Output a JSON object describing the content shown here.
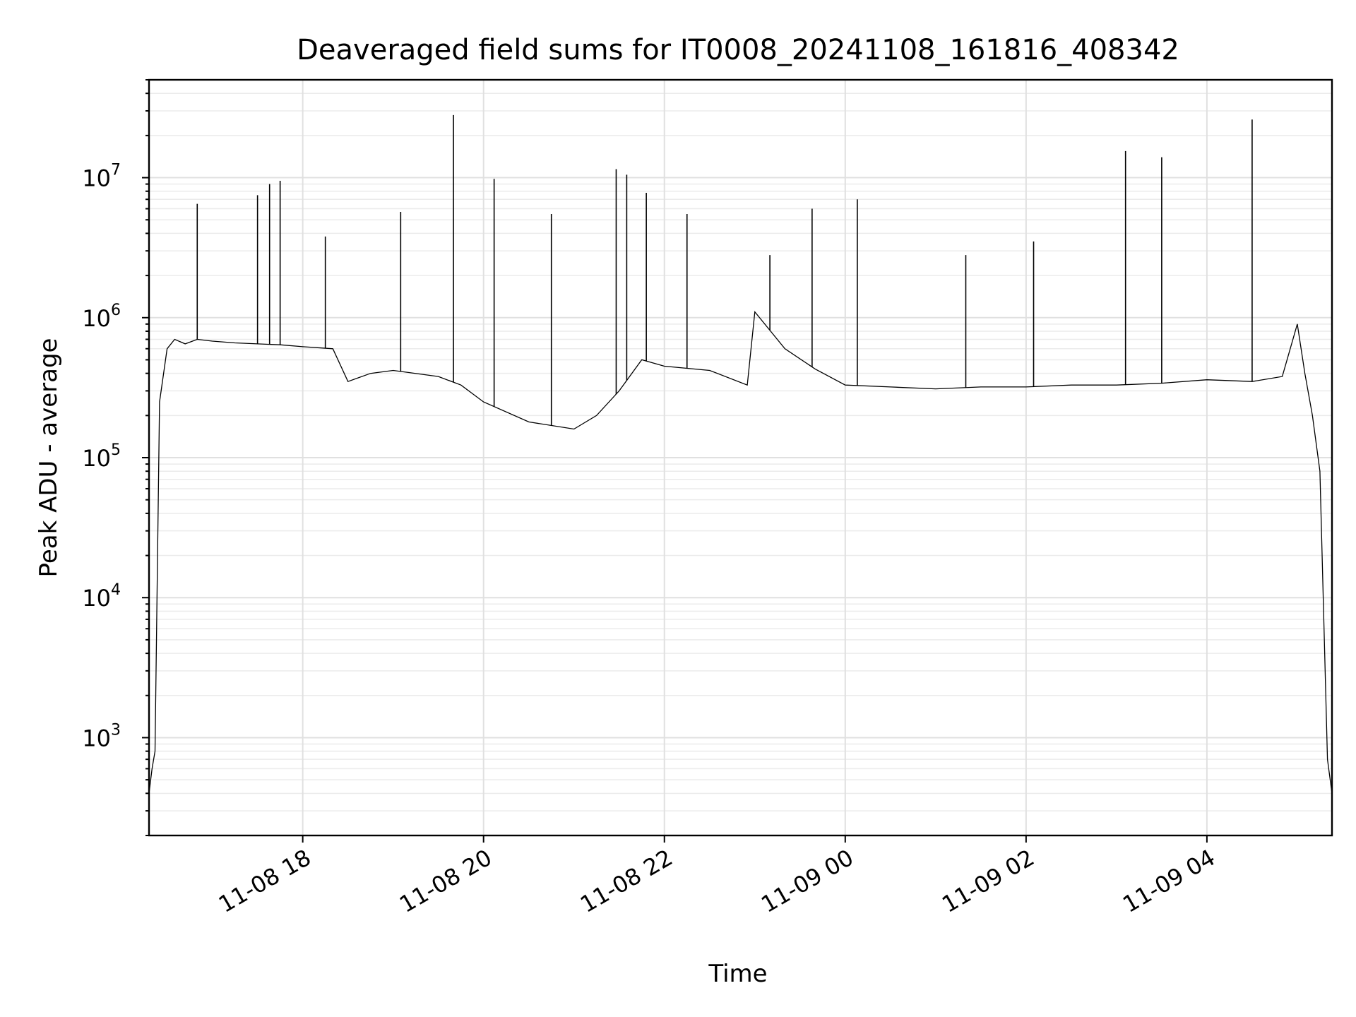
{
  "chart_data": {
    "type": "line",
    "title": "Deaveraged field sums for IT0008_20241108_161816_408342",
    "xlabel": "Time",
    "ylabel": "Peak ADU - average",
    "yscale": "log",
    "ylim": [
      200,
      50000000
    ],
    "xlim": [
      "2024-11-08 16:18",
      "2024-11-09 05:23"
    ],
    "grid": true,
    "x_ticks": [
      {
        "at": "2024-11-08 18:00",
        "label": "11-08 18"
      },
      {
        "at": "2024-11-08 20:00",
        "label": "11-08 20"
      },
      {
        "at": "2024-11-08 22:00",
        "label": "11-08 22"
      },
      {
        "at": "2024-11-09 00:00",
        "label": "11-09 00"
      },
      {
        "at": "2024-11-09 02:00",
        "label": "11-09 02"
      },
      {
        "at": "2024-11-09 04:00",
        "label": "11-09 04"
      }
    ],
    "y_ticks": [
      {
        "value": 1000,
        "base": "10",
        "exp": "3"
      },
      {
        "value": 10000,
        "base": "10",
        "exp": "4"
      },
      {
        "value": 100000,
        "base": "10",
        "exp": "5"
      },
      {
        "value": 1000000,
        "base": "10",
        "exp": "6"
      },
      {
        "value": 10000000,
        "base": "10",
        "exp": "7"
      }
    ],
    "series": [
      {
        "color": "#000000",
        "x": [
          "2024-11-08 16:18",
          "2024-11-08 16:20",
          "2024-11-08 16:22",
          "2024-11-08 16:25",
          "2024-11-08 16:30",
          "2024-11-08 16:35",
          "2024-11-08 16:42",
          "2024-11-08 16:50",
          "2024-11-08 17:00",
          "2024-11-08 17:15",
          "2024-11-08 17:30",
          "2024-11-08 17:45",
          "2024-11-08 18:00",
          "2024-11-08 18:20",
          "2024-11-08 18:30",
          "2024-11-08 18:45",
          "2024-11-08 19:00",
          "2024-11-08 19:30",
          "2024-11-08 19:45",
          "2024-11-08 20:00",
          "2024-11-08 20:30",
          "2024-11-08 21:00",
          "2024-11-08 21:15",
          "2024-11-08 21:30",
          "2024-11-08 21:45",
          "2024-11-08 22:00",
          "2024-11-08 22:30",
          "2024-11-08 22:55",
          "2024-11-08 23:00",
          "2024-11-08 23:20",
          "2024-11-08 23:40",
          "2024-11-09 00:00",
          "2024-11-09 00:30",
          "2024-11-09 01:00",
          "2024-11-09 01:30",
          "2024-11-09 02:00",
          "2024-11-09 02:30",
          "2024-11-09 03:00",
          "2024-11-09 03:30",
          "2024-11-09 04:00",
          "2024-11-09 04:30",
          "2024-11-09 04:50",
          "2024-11-09 05:00",
          "2024-11-09 05:05",
          "2024-11-09 05:10",
          "2024-11-09 05:15",
          "2024-11-09 05:20",
          "2024-11-09 05:23"
        ],
        "y": [
          400,
          600,
          800,
          250000,
          600000,
          700000,
          650000,
          700000,
          680000,
          660000,
          650000,
          640000,
          620000,
          600000,
          350000,
          400000,
          420000,
          380000,
          330000,
          250000,
          180000,
          160000,
          200000,
          300000,
          500000,
          450000,
          420000,
          330000,
          1100000,
          600000,
          430000,
          330000,
          320000,
          310000,
          320000,
          320000,
          330000,
          330000,
          340000,
          360000,
          350000,
          380000,
          900000,
          400000,
          200000,
          80000,
          700,
          400
        ]
      }
    ],
    "spikes": [
      {
        "x": "2024-11-08 16:50",
        "y": 6500000
      },
      {
        "x": "2024-11-08 17:30",
        "y": 7500000
      },
      {
        "x": "2024-11-08 17:38",
        "y": 9000000
      },
      {
        "x": "2024-11-08 17:45",
        "y": 9500000
      },
      {
        "x": "2024-11-08 18:15",
        "y": 3800000
      },
      {
        "x": "2024-11-08 19:05",
        "y": 5700000
      },
      {
        "x": "2024-11-08 19:40",
        "y": 28000000
      },
      {
        "x": "2024-11-08 20:07",
        "y": 9800000
      },
      {
        "x": "2024-11-08 20:45",
        "y": 5500000
      },
      {
        "x": "2024-11-08 21:28",
        "y": 11500000
      },
      {
        "x": "2024-11-08 21:35",
        "y": 10500000
      },
      {
        "x": "2024-11-08 21:48",
        "y": 7800000
      },
      {
        "x": "2024-11-08 22:15",
        "y": 5500000
      },
      {
        "x": "2024-11-08 23:10",
        "y": 2800000
      },
      {
        "x": "2024-11-08 23:38",
        "y": 6000000
      },
      {
        "x": "2024-11-09 00:08",
        "y": 7000000
      },
      {
        "x": "2024-11-09 01:20",
        "y": 2800000
      },
      {
        "x": "2024-11-09 02:05",
        "y": 3500000
      },
      {
        "x": "2024-11-09 03:06",
        "y": 15500000
      },
      {
        "x": "2024-11-09 03:30",
        "y": 14000000
      },
      {
        "x": "2024-11-09 04:30",
        "y": 26000000
      }
    ]
  }
}
